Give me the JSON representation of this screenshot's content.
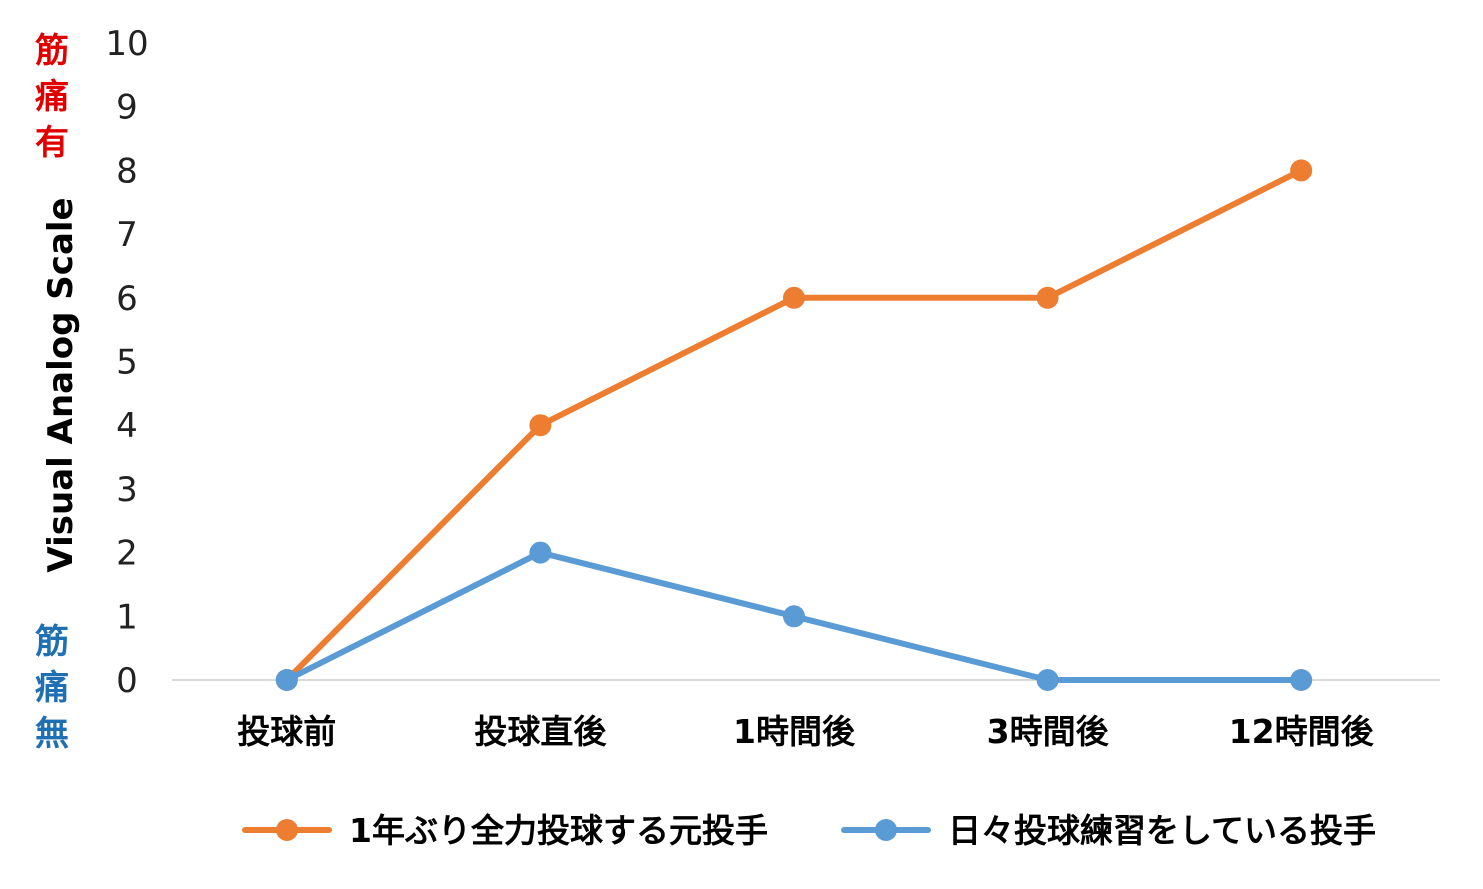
{
  "chart_data": {
    "type": "line",
    "ylabel": "Visual Analog Scale",
    "xlabel": "",
    "ylim": [
      0,
      10
    ],
    "yticks": [
      "0",
      "1",
      "2",
      "3",
      "4",
      "5",
      "6",
      "7",
      "8",
      "9",
      "10"
    ],
    "categories": [
      "投球前",
      "投球直後",
      "1時間後",
      "3時間後",
      "12時間後"
    ],
    "series": [
      {
        "name": "1年ぶり全力投球する元投手",
        "color": "#ED7D31",
        "values": [
          0,
          4,
          6,
          6,
          8
        ]
      },
      {
        "name": "日々投球練習をしている投手",
        "color": "#5B9BD5",
        "values": [
          0,
          2,
          1,
          0,
          0
        ]
      }
    ],
    "annotations": {
      "top": {
        "chars": [
          "筋",
          "痛",
          "有"
        ],
        "color": "#E00000"
      },
      "bottom": {
        "chars": [
          "筋",
          "痛",
          "無"
        ],
        "color": "#1F6FB3"
      }
    },
    "grid": false,
    "legend_position": "bottom"
  }
}
